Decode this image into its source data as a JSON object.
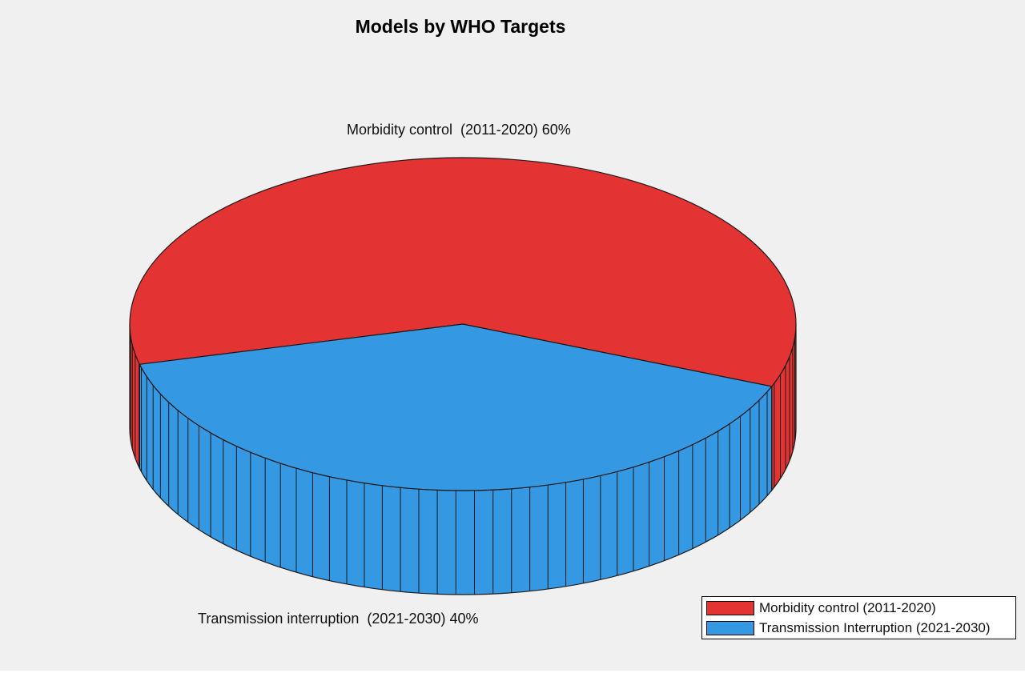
{
  "chart_data": {
    "type": "pie",
    "title": "Models by WHO Targets",
    "style": "3d",
    "slices": [
      {
        "label": "Morbidity control  (2011-2020) 60%",
        "legend": "Morbidity control (2011-2020)",
        "value": 60,
        "color": "#e33333"
      },
      {
        "label": "Transmission interruption  (2021-2030) 40%",
        "legend": "Transmission Interruption (2021-2030)",
        "value": 40,
        "color": "#3498e3"
      }
    ],
    "legend_position": "bottom-right"
  }
}
